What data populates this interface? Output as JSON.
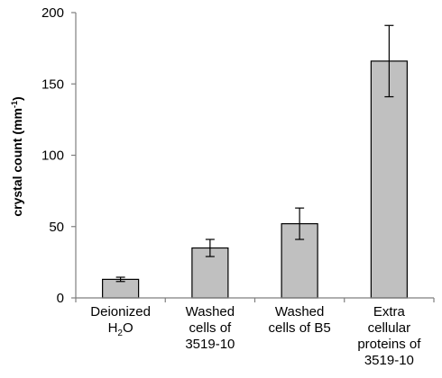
{
  "chart_data": {
    "type": "bar",
    "categories": [
      [
        "Deionized",
        "H2O"
      ],
      [
        "Washed",
        "cells of",
        "3519-10"
      ],
      [
        "Washed",
        "cells of B5"
      ],
      [
        "Extra",
        "cellular",
        "proteins of",
        "3519-10"
      ]
    ],
    "values": [
      13,
      35,
      52,
      166
    ],
    "errors": [
      1.5,
      6,
      11,
      25
    ],
    "ylabel": "crystal count (mm-1)",
    "ylabel_main": "crystal  count (mm",
    "ylabel_sup": "-1",
    "ylabel_tail": ")",
    "ylim": [
      0,
      200
    ],
    "yticks": [
      "0",
      "50",
      "100",
      "150",
      "200"
    ],
    "grid": false,
    "colors": {
      "bar_fill": "#c0c0c0",
      "bar_stroke": "#000000",
      "axis": "#7f7f7f"
    }
  }
}
